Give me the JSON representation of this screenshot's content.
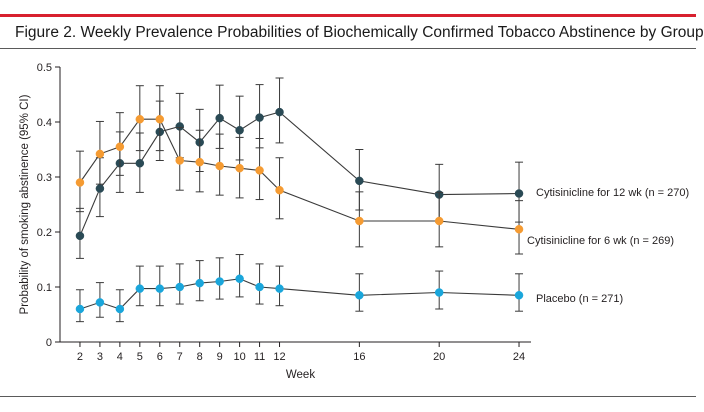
{
  "figure": {
    "title": "Figure 2. Weekly Prevalence Probabilities of Biochemically Confirmed Tobacco Abstinence by Group"
  },
  "chart_data": {
    "type": "line",
    "xlabel": "Week",
    "ylabel": "Probability of smoking abstinence (95% CI)",
    "xlim": [
      1,
      24.6
    ],
    "ylim": [
      0,
      0.5
    ],
    "x_ticks": [
      2,
      3,
      4,
      5,
      6,
      7,
      8,
      9,
      10,
      11,
      12,
      16,
      20,
      24
    ],
    "y_ticks": [
      "0",
      "0.1",
      "0.2",
      "0.3",
      "0.4",
      "0.5"
    ],
    "grid": false,
    "legend": "inline labels at right end of each series",
    "series": [
      {
        "name": "Cytisinicline for 12 wk (n = 270)",
        "color": "#2a4a55",
        "x": [
          2,
          3,
          4,
          5,
          6,
          7,
          8,
          9,
          10,
          11,
          12,
          16,
          20,
          24
        ],
        "y": [
          0.193,
          0.279,
          0.325,
          0.325,
          0.382,
          0.392,
          0.363,
          0.407,
          0.385,
          0.408,
          0.418,
          0.293,
          0.268,
          0.27
        ],
        "lower": [
          0.152,
          0.228,
          0.272,
          0.272,
          0.33,
          0.335,
          0.31,
          0.352,
          0.331,
          0.353,
          0.362,
          0.24,
          0.218,
          0.218
        ],
        "upper": [
          0.243,
          0.335,
          0.382,
          0.38,
          0.438,
          0.452,
          0.423,
          0.467,
          0.447,
          0.468,
          0.48,
          0.35,
          0.323,
          0.327
        ]
      },
      {
        "name": "Cytisinicline for 6 wk (n = 269)",
        "color": "#f59b32",
        "x": [
          2,
          3,
          4,
          5,
          6,
          7,
          8,
          9,
          10,
          11,
          12,
          16,
          20,
          24
        ],
        "y": [
          0.29,
          0.342,
          0.355,
          0.405,
          0.405,
          0.33,
          0.327,
          0.32,
          0.316,
          0.312,
          0.276,
          0.22,
          0.22,
          0.205
        ],
        "lower": [
          0.237,
          0.287,
          0.303,
          0.348,
          0.348,
          0.276,
          0.273,
          0.267,
          0.262,
          0.259,
          0.224,
          0.173,
          0.173,
          0.16
        ],
        "upper": [
          0.347,
          0.401,
          0.417,
          0.466,
          0.466,
          0.39,
          0.385,
          0.378,
          0.372,
          0.37,
          0.335,
          0.273,
          0.272,
          0.257
        ]
      },
      {
        "name": "Placebo (n = 271)",
        "color": "#1aa6db",
        "x": [
          2,
          3,
          4,
          5,
          6,
          7,
          8,
          9,
          10,
          11,
          12,
          16,
          20,
          24
        ],
        "y": [
          0.06,
          0.072,
          0.06,
          0.097,
          0.097,
          0.1,
          0.107,
          0.11,
          0.115,
          0.1,
          0.097,
          0.085,
          0.09,
          0.085
        ],
        "lower": [
          0.037,
          0.045,
          0.037,
          0.066,
          0.066,
          0.069,
          0.075,
          0.078,
          0.082,
          0.069,
          0.066,
          0.056,
          0.06,
          0.056
        ],
        "upper": [
          0.095,
          0.108,
          0.095,
          0.138,
          0.138,
          0.142,
          0.148,
          0.153,
          0.159,
          0.142,
          0.138,
          0.124,
          0.129,
          0.124
        ]
      }
    ]
  }
}
